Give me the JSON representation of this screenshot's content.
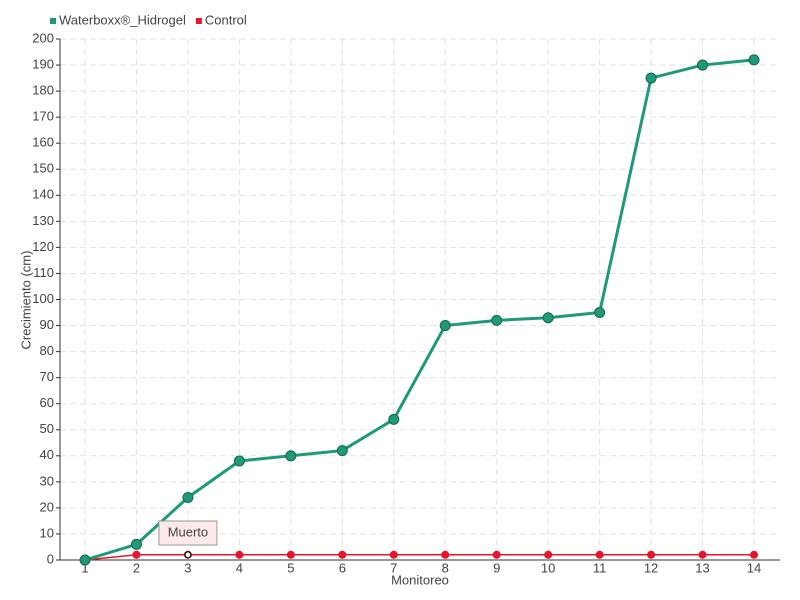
{
  "chart_data": {
    "type": "line",
    "categories": [
      "1",
      "2",
      "3",
      "4",
      "5",
      "6",
      "7",
      "8",
      "9",
      "10",
      "11",
      "12",
      "13",
      "14"
    ],
    "series": [
      {
        "name": "Waterboxx®_Hidrogel",
        "color": "#1f9a78",
        "values": [
          0,
          6,
          24,
          38,
          40,
          42,
          54,
          90,
          92,
          93,
          95,
          185,
          190,
          192
        ]
      },
      {
        "name": "Control",
        "color": "#e8142b",
        "values": [
          0,
          2,
          2,
          2,
          2,
          2,
          2,
          2,
          2,
          2,
          2,
          2,
          2,
          2
        ]
      }
    ],
    "ylim": [
      0,
      200
    ],
    "yticks": [
      0,
      10,
      20,
      30,
      40,
      50,
      60,
      70,
      80,
      90,
      100,
      110,
      120,
      130,
      140,
      150,
      160,
      170,
      180,
      190,
      200
    ],
    "xlabel": "Monitoreo",
    "ylabel": "Crecimiento (cm)",
    "annotations": [
      "Muerto"
    ],
    "grid": true,
    "legend": "top-left"
  }
}
